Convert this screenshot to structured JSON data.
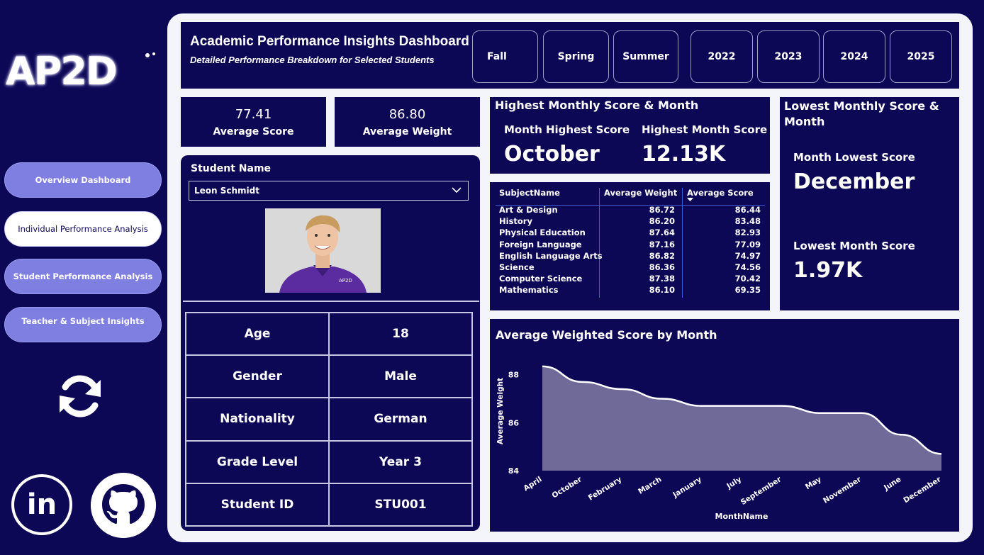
{
  "sidebar": {
    "logo_text": "AP2D",
    "nav": [
      {
        "label": "Overview Dashboard",
        "active": false
      },
      {
        "label": "Individual Performance Analysis",
        "active": true
      },
      {
        "label": "Student Performance Analysis",
        "active": false
      },
      {
        "label": "Teacher & Subject Insights",
        "active": false
      }
    ],
    "social": {
      "linkedin_text": "in"
    }
  },
  "header": {
    "title": "Academic Performance Insights Dashboard",
    "subtitle": "Detailed Performance Breakdown for Selected Students",
    "semesters": [
      "Fall",
      "Spring",
      "Summer"
    ],
    "years": [
      "2022",
      "2023",
      "2024",
      "2025"
    ]
  },
  "kpis": {
    "avg_score_value": "77.41",
    "avg_score_label": "Average Score",
    "avg_weight_value": "86.80",
    "avg_weight_label": "Average Weight"
  },
  "student": {
    "name_label": "Student Name",
    "selected": "Leon Schmidt",
    "photo_badge": "AP2D",
    "fields": [
      {
        "label": "Age",
        "value": "18"
      },
      {
        "label": "Gender",
        "value": "Male"
      },
      {
        "label": "Nationality",
        "value": "German"
      },
      {
        "label": "Grade Level",
        "value": "Year 3"
      },
      {
        "label": "Student ID",
        "value": "STU001"
      }
    ]
  },
  "highest": {
    "title": "Highest Monthly Score & Month",
    "month_label": "Month Highest Score",
    "month_value": "October",
    "score_label": "Highest Month Score",
    "score_value": "12.13K"
  },
  "lowest": {
    "title": "Lowest Monthly Score & Month",
    "month_label": "Month Lowest Score",
    "month_value": "December",
    "score_label": "Lowest Month Score",
    "score_value": "1.97K"
  },
  "subject_table": {
    "headers": [
      "SubjectName",
      "Average Weight",
      "Average Score"
    ],
    "rows": [
      [
        "Art & Design",
        "86.72",
        "86.44"
      ],
      [
        "History",
        "86.20",
        "83.48"
      ],
      [
        "Physical Education",
        "87.64",
        "82.93"
      ],
      [
        "Foreign Language",
        "87.16",
        "77.09"
      ],
      [
        "English Language Arts",
        "86.82",
        "74.97"
      ],
      [
        "Science",
        "86.36",
        "74.56"
      ],
      [
        "Computer Science",
        "87.38",
        "70.42"
      ],
      [
        "Mathematics",
        "86.10",
        "69.35"
      ]
    ]
  },
  "colors": {
    "background": "#0d0856",
    "frame": "#f4f5fb",
    "nav_button": "#7e7fe0",
    "area_fill": "#6f6a98",
    "table_rule": "#3f5bd6"
  },
  "chart_data": {
    "type": "area",
    "title": "Average Weighted Score by Month",
    "xlabel": "MonthName",
    "ylabel": "Average Weight",
    "categories": [
      "April",
      "October",
      "February",
      "March",
      "January",
      "July",
      "September",
      "May",
      "November",
      "June",
      "December"
    ],
    "values": [
      88.35,
      87.7,
      87.4,
      87.0,
      86.7,
      86.7,
      86.7,
      86.4,
      86.4,
      85.5,
      84.7
    ],
    "ylim": [
      84,
      88.7
    ],
    "yticks": [
      84,
      86,
      88
    ],
    "grid": false
  }
}
